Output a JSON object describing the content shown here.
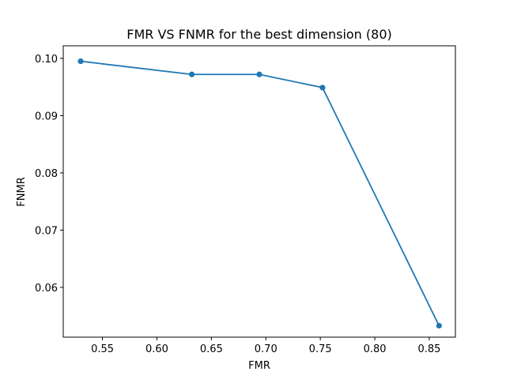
{
  "chart_data": {
    "type": "line",
    "title": "FMR VS FNMR for the best dimension (80)",
    "xlabel": "FMR",
    "ylabel": "FNMR",
    "xlim": [
      0.514,
      0.874
    ],
    "ylim": [
      0.0513,
      0.1022
    ],
    "xticks": [
      0.55,
      0.6,
      0.65,
      0.7,
      0.75,
      0.8,
      0.85
    ],
    "xtick_labels": [
      "0.55",
      "0.60",
      "0.65",
      "0.70",
      "0.75",
      "0.80",
      "0.85"
    ],
    "yticks": [
      0.06,
      0.07,
      0.08,
      0.09,
      0.1
    ],
    "ytick_labels": [
      "0.06",
      "0.07",
      "0.08",
      "0.09",
      "0.10"
    ],
    "grid": false,
    "series": [
      {
        "color": "#1f77b4",
        "marker": "circle",
        "x": [
          0.53,
          0.632,
          0.694,
          0.752,
          0.859
        ],
        "y": [
          0.0995,
          0.0972,
          0.0972,
          0.0949,
          0.0533
        ]
      }
    ]
  }
}
